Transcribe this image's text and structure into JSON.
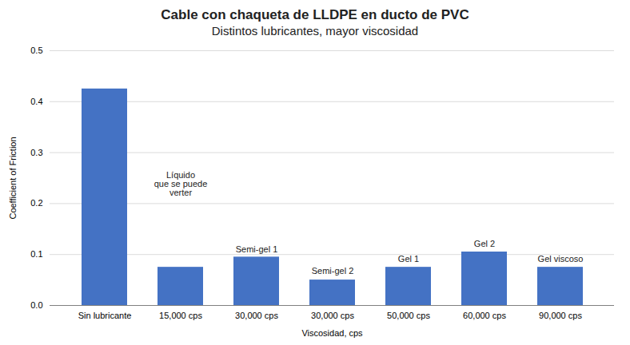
{
  "chart_data": {
    "type": "bar",
    "title": "Cable con chaqueta de LLDPE en ducto de PVC",
    "subtitle": "Distintos lubricantes, mayor viscosidad",
    "x_label": "Viscosidad, cps",
    "y_label": "Coefficient of Friction",
    "categories": [
      "Sin lubricante",
      "15,000 cps",
      "30,000 cps",
      "30,000 cps",
      "50,000 cps",
      "60,000 cps",
      "90,000 cps"
    ],
    "values": [
      0.425,
      0.075,
      0.095,
      0.05,
      0.075,
      0.105,
      0.075
    ],
    "color": "#4472C4",
    "ylim": [
      0,
      0.5
    ],
    "yticks": [
      {
        "value": 0,
        "label": "0.0"
      },
      0.1,
      0.2,
      0.3,
      0.4,
      0.5
    ],
    "grid": true,
    "annotations": [
      {
        "text": "Líquido\nque se puede\nverter",
        "x": 1,
        "y": 0.215
      },
      {
        "text": "Semi-gel 1",
        "x": 2,
        "y": 0.105
      },
      {
        "text": "Semi-gel 2",
        "x": 3,
        "y": 0.062
      },
      {
        "text": "Gel 1",
        "x": 4,
        "y": 0.085
      },
      {
        "text": "Gel 2",
        "x": 5,
        "y": 0.115
      },
      {
        "text": "Gel viscoso",
        "x": 6,
        "y": 0.085
      }
    ]
  }
}
